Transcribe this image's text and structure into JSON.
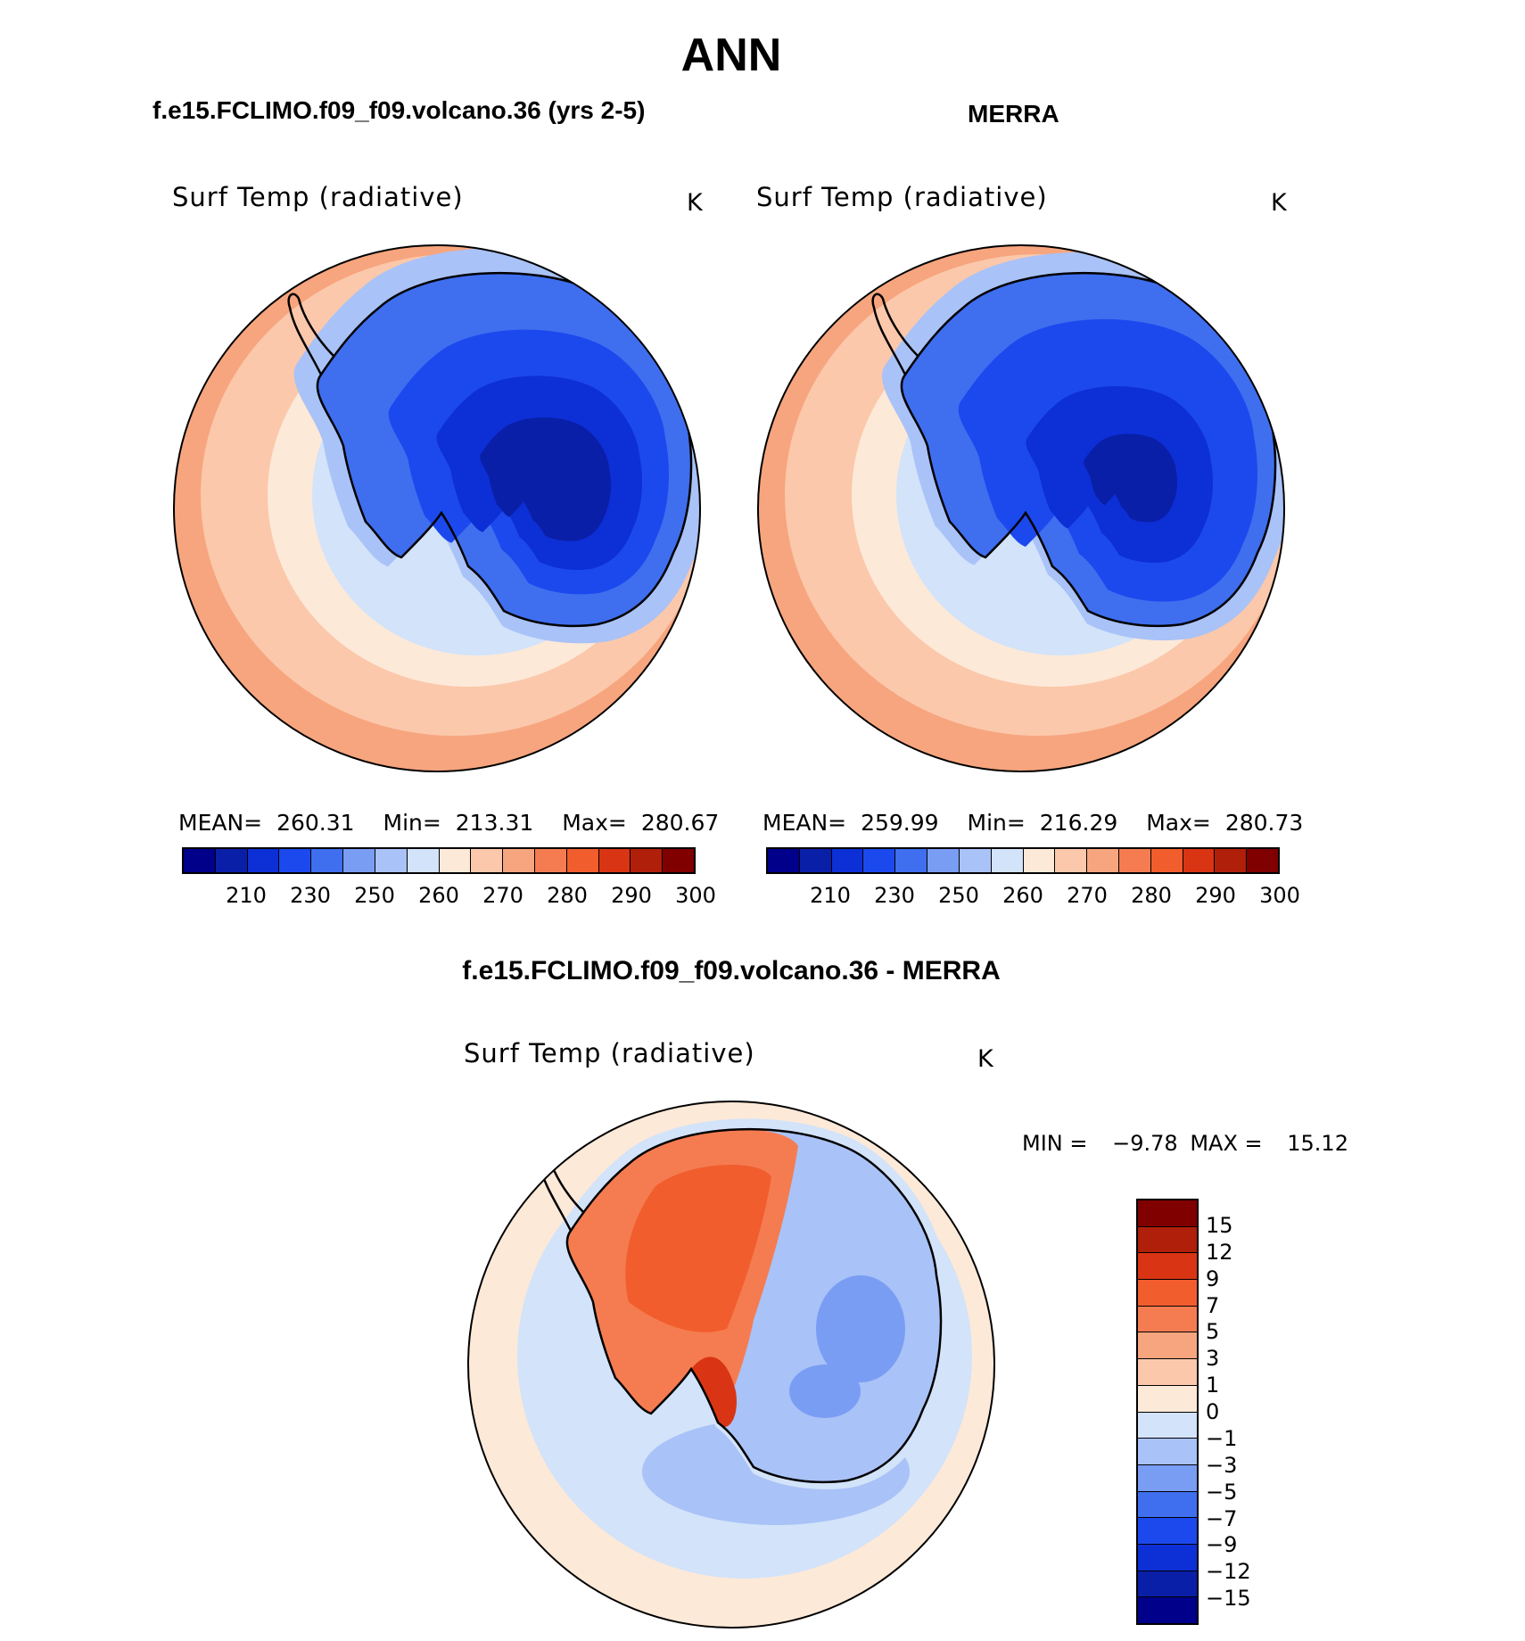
{
  "main_title": "ANN",
  "panels": [
    {
      "title": "f.e15.FCLIMO.f09_f09.volcano.36 (yrs 2-5)",
      "variable": "Surf Temp (radiative)",
      "units": "K",
      "mean_label": "MEAN=",
      "mean": "260.31",
      "min_label": "Min=",
      "min": "213.31",
      "max_label": "Max=",
      "max": "280.67"
    },
    {
      "title": "MERRA",
      "variable": "Surf Temp (radiative)",
      "units": "K",
      "mean_label": "MEAN=",
      "mean": "259.99",
      "min_label": "Min=",
      "min": "216.29",
      "max_label": "Max=",
      "max": "280.73"
    }
  ],
  "abs_colorbar": {
    "colors": [
      "#00008b",
      "#0a1fa8",
      "#0d2fd6",
      "#1c49ee",
      "#3f6fef",
      "#7a9df4",
      "#a9c2f7",
      "#d2e3fa",
      "#fde9d8",
      "#fbc8ab",
      "#f7a57e",
      "#f57c51",
      "#f25d2d",
      "#d93514",
      "#b01f0a",
      "#800000"
    ],
    "tick_labels": [
      "210",
      "230",
      "250",
      "260",
      "270",
      "280",
      "290",
      "300"
    ]
  },
  "diff": {
    "title": "f.e15.FCLIMO.f09_f09.volcano.36 - MERRA",
    "variable": "Surf Temp (radiative)",
    "units": "K",
    "min_label": "MIN =",
    "min": "−9.78",
    "max_label": "MAX =",
    "max": "15.12",
    "colorbar": {
      "colors": [
        "#800000",
        "#b01f0a",
        "#d93514",
        "#f25d2d",
        "#f57c51",
        "#f7a57e",
        "#fbc8ab",
        "#fde9d8",
        "#d2e3fa",
        "#a9c2f7",
        "#7a9df4",
        "#3f6fef",
        "#1c49ee",
        "#0d2fd6",
        "#0a1fa8",
        "#00008b"
      ],
      "tick_labels": [
        "15",
        "12",
        "9",
        "7",
        "5",
        "3",
        "1",
        "0",
        "−1",
        "−3",
        "−5",
        "−7",
        "−9",
        "−12",
        "−15"
      ]
    }
  }
}
